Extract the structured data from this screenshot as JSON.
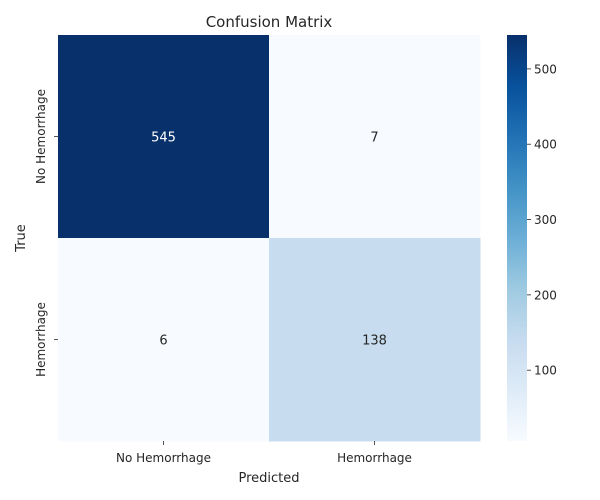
{
  "chart_data": {
    "type": "heatmap",
    "title": "Confusion Matrix",
    "xlabel": "Predicted",
    "ylabel": "True",
    "x_categories": [
      "No Hemorrhage",
      "Hemorrhage"
    ],
    "y_categories": [
      "No Hemorrhage",
      "Hemorrhage"
    ],
    "values": [
      [
        545,
        7
      ],
      [
        6,
        138
      ]
    ],
    "colorbar": {
      "ticks": [
        100,
        200,
        300,
        400,
        500
      ],
      "range": [
        6,
        545
      ],
      "colormap": "Blues"
    },
    "colors": {
      "low": "#f7fbff",
      "high": "#08306b"
    }
  }
}
